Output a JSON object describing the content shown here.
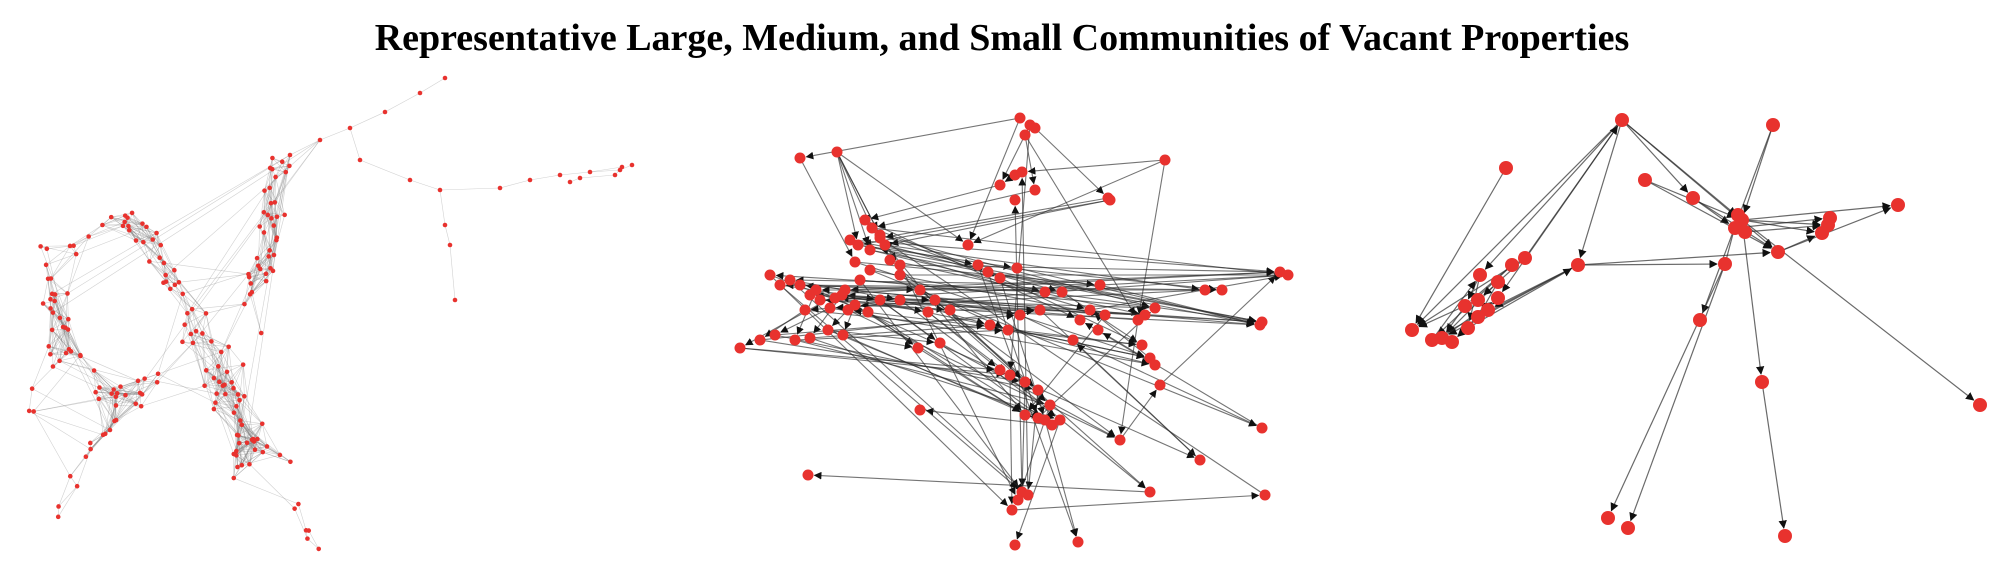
{
  "title": "Representative Large, Medium, and Small Communities of Vacant Properties",
  "colors": {
    "node": "#e8322e",
    "edge_large": "#7a7a7a",
    "edge_directed": "#2b2b2b",
    "background": "#ffffff",
    "title": "#000000"
  },
  "panels": [
    {
      "name": "large-community",
      "directed": false
    },
    {
      "name": "medium-community",
      "directed": true
    },
    {
      "name": "small-community",
      "directed": true
    }
  ]
}
